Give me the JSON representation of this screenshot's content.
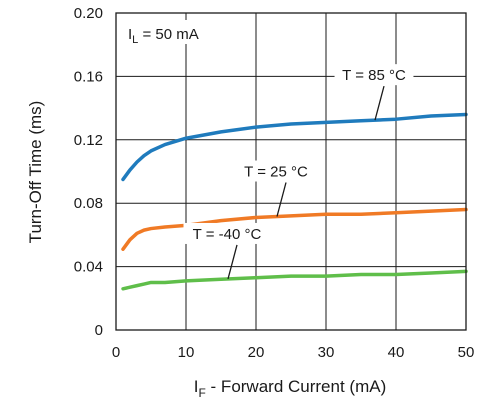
{
  "chart_data": {
    "type": "line",
    "xlabel": {
      "main": "I",
      "sub": "F",
      "rest": " - Forward Current (mA)"
    },
    "ylabel": "Turn-Off Time (ms)",
    "xlim": [
      0,
      50
    ],
    "ylim": [
      0,
      0.2
    ],
    "x_ticks": [
      "0",
      "10",
      "20",
      "30",
      "40",
      "50"
    ],
    "y_ticks": [
      "0",
      "0.04",
      "0.08",
      "0.12",
      "0.16",
      "0.20"
    ],
    "grid": true,
    "condition": {
      "main": "I",
      "sub": "L",
      "rest": " = 50 mA"
    },
    "series": [
      {
        "name": "T = 85 °C",
        "color": "#1f7bbd",
        "x": [
          1,
          2,
          3,
          4,
          5,
          7,
          10,
          15,
          20,
          25,
          30,
          35,
          40,
          45,
          50
        ],
        "y": [
          0.095,
          0.101,
          0.106,
          0.11,
          0.113,
          0.117,
          0.121,
          0.125,
          0.128,
          0.13,
          0.131,
          0.132,
          0.133,
          0.135,
          0.136
        ]
      },
      {
        "name": "T = 25 °C",
        "color": "#f07a25",
        "x": [
          1,
          2,
          3,
          4,
          5,
          7,
          10,
          15,
          20,
          25,
          30,
          35,
          40,
          45,
          50
        ],
        "y": [
          0.051,
          0.057,
          0.061,
          0.063,
          0.064,
          0.065,
          0.066,
          0.069,
          0.071,
          0.072,
          0.073,
          0.073,
          0.074,
          0.075,
          0.076
        ]
      },
      {
        "name": "T = -40 °C",
        "color": "#5fbe4a",
        "x": [
          1,
          2,
          3,
          4,
          5,
          7,
          10,
          15,
          20,
          25,
          30,
          35,
          40,
          45,
          50
        ],
        "y": [
          0.026,
          0.027,
          0.028,
          0.029,
          0.03,
          0.03,
          0.031,
          0.032,
          0.033,
          0.034,
          0.034,
          0.035,
          0.035,
          0.036,
          0.037
        ]
      }
    ],
    "annotations": [
      {
        "text": "T = 85 °C",
        "series": 0,
        "at_x": 37
      },
      {
        "text": "T = 25 °C",
        "series": 1,
        "at_x": 23
      },
      {
        "text": "T = -40 °C",
        "series": 2,
        "at_x": 16
      }
    ]
  }
}
